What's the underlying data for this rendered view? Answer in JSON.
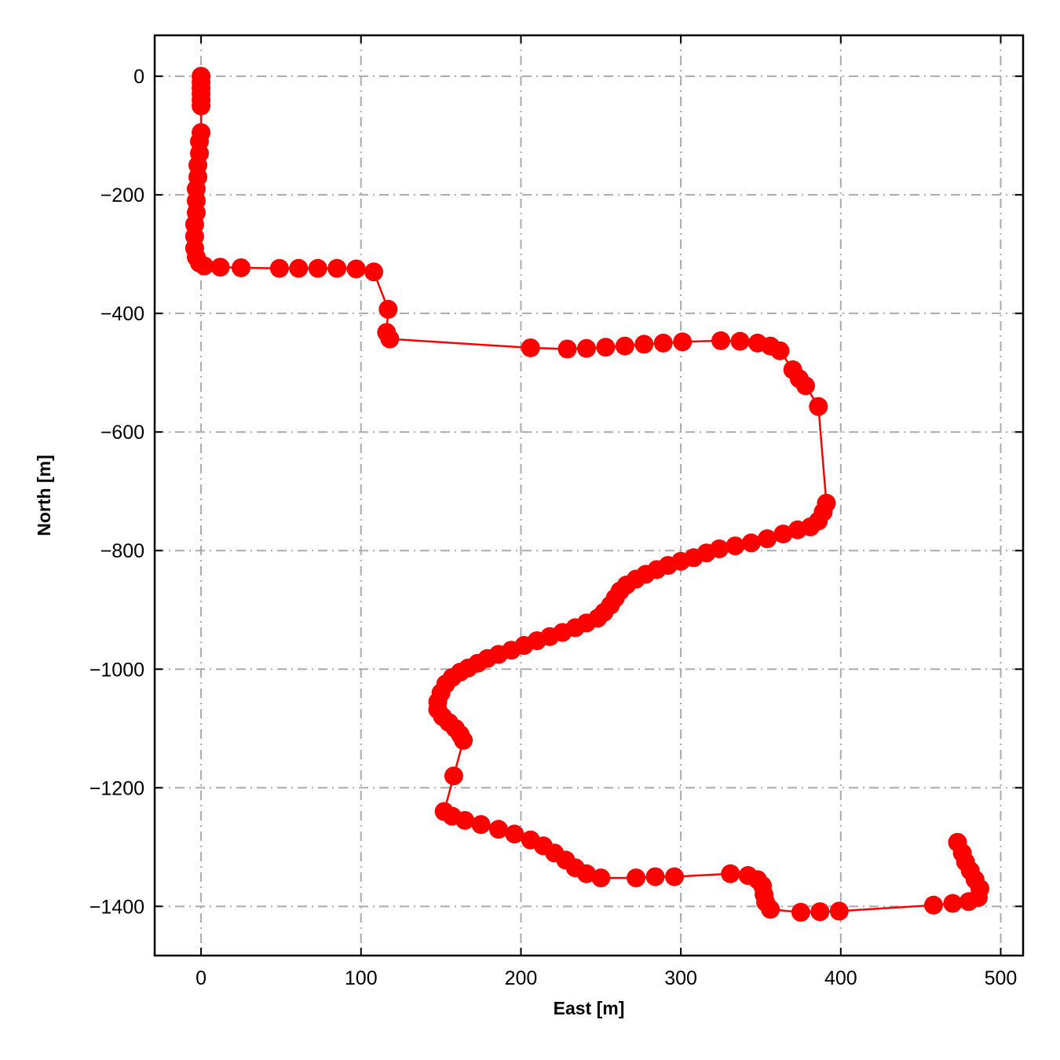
{
  "chart_data": {
    "type": "line",
    "xlabel": "East [m]",
    "ylabel": "North [m]",
    "color": "#ff0000",
    "grid": true,
    "xlim": [
      -29,
      514
    ],
    "ylim": [
      -1483,
      69
    ],
    "xticks": [
      0,
      100,
      200,
      300,
      400,
      500
    ],
    "yticks": [
      0,
      {
        "value": -200,
        "label": "−200"
      },
      {
        "value": -400,
        "label": "−400"
      },
      {
        "value": -600,
        "label": "−600"
      },
      {
        "value": -800,
        "label": "−800"
      },
      {
        "value": -1000,
        "label": "−1000"
      },
      {
        "value": -1200,
        "label": "−1200"
      },
      {
        "value": -1400,
        "label": "−1400"
      }
    ],
    "x": [
      0,
      0,
      0,
      0,
      0,
      0,
      0,
      -1,
      -1,
      -2,
      -2,
      -3,
      -3,
      -3,
      -4,
      -4,
      -4,
      -3,
      -1,
      2,
      12,
      25,
      49,
      61,
      73,
      85,
      97,
      108,
      117,
      116,
      118,
      206,
      229,
      241,
      253,
      265,
      277,
      289,
      301,
      325,
      337,
      348,
      356,
      362,
      370,
      374,
      378,
      386,
      391,
      389,
      386,
      381,
      373,
      364,
      354,
      344,
      334,
      324,
      316,
      308,
      300,
      292,
      285,
      278,
      272,
      266,
      262,
      259,
      256,
      252,
      248,
      241,
      234,
      226,
      218,
      210,
      202,
      194,
      186,
      179,
      173,
      167,
      162,
      157,
      153,
      150,
      148,
      148,
      151,
      155,
      159,
      162,
      164,
      158,
      152,
      157,
      165,
      175,
      186,
      196,
      206,
      214,
      221,
      228,
      234,
      241,
      250,
      272,
      284,
      296,
      331,
      342,
      348,
      351,
      352,
      353,
      356,
      375,
      387,
      399,
      458,
      470,
      480,
      486,
      487,
      484,
      481,
      478,
      476,
      473
    ],
    "values": [
      0,
      -10,
      -20,
      -30,
      -40,
      -50,
      -95,
      -110,
      -130,
      -150,
      -170,
      -190,
      -210,
      -230,
      -250,
      -270,
      -290,
      -305,
      -315,
      -320,
      -322,
      -323,
      -324,
      -324,
      -324,
      -324,
      -325,
      -330,
      -393,
      -432,
      -443,
      -458,
      -460,
      -459,
      -457,
      -455,
      -452,
      -450,
      -448,
      -446,
      -447,
      -450,
      -455,
      -463,
      -495,
      -510,
      -522,
      -557,
      -720,
      -735,
      -750,
      -760,
      -765,
      -772,
      -780,
      -787,
      -792,
      -797,
      -804,
      -812,
      -818,
      -825,
      -832,
      -840,
      -848,
      -858,
      -868,
      -880,
      -892,
      -904,
      -914,
      -922,
      -930,
      -938,
      -945,
      -952,
      -960,
      -968,
      -975,
      -982,
      -990,
      -998,
      -1005,
      -1014,
      -1025,
      -1040,
      -1055,
      -1068,
      -1080,
      -1090,
      -1100,
      -1110,
      -1120,
      -1180,
      -1240,
      -1248,
      -1255,
      -1262,
      -1270,
      -1278,
      -1288,
      -1298,
      -1310,
      -1322,
      -1335,
      -1345,
      -1352,
      -1352,
      -1350,
      -1350,
      -1345,
      -1348,
      -1355,
      -1365,
      -1380,
      -1393,
      -1405,
      -1410,
      -1409,
      -1408,
      -1398,
      -1395,
      -1392,
      -1385,
      -1370,
      -1355,
      -1340,
      -1325,
      -1310,
      -1292
    ]
  }
}
